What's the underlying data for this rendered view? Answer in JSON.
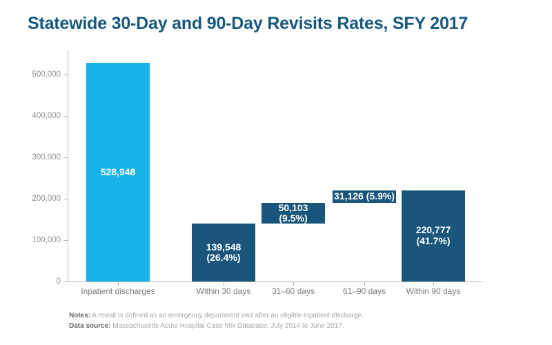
{
  "title": "Statewide 30-Day and 90-Day Revisits Rates, SFY 2017",
  "notes": {
    "notes_label": "Notes:",
    "notes_text": " A revisit is defined as an emergency department visit after an eligible inpatient discharge.",
    "source_label": "Data source:",
    "source_text": " Massachusetts Acute Hospital Case Mix Database, July 2014 to June 2017."
  },
  "colors": {
    "title": "#14587F",
    "bar_light": "#18B3E6",
    "bar_dark": "#1A567C",
    "axis": "#B5B5B5",
    "value_label": "#FFFFFF"
  },
  "chart_data": {
    "type": "bar",
    "subtype": "waterfall",
    "title": "Statewide 30-Day and 90-Day Revisits Rates, SFY 2017",
    "categories": [
      "Inpatient discharges",
      "Within 30 days",
      "31–60 days",
      "61–90 days",
      "Within 90 days"
    ],
    "values": [
      528948,
      139548,
      50103,
      31126,
      220777
    ],
    "base_values": [
      0,
      0,
      139548,
      189651,
      0
    ],
    "percent_of_discharges": [
      null,
      26.4,
      9.5,
      5.9,
      41.7
    ],
    "bar_labels": [
      [
        "528,948"
      ],
      [
        "139,548",
        "(26.4%)"
      ],
      [
        "50,103",
        "(9.5%)"
      ],
      [
        "31,126 (5.9%)"
      ],
      [
        "220,777",
        "(41.7%)"
      ]
    ],
    "bar_color_keys": [
      "bar_light",
      "bar_dark",
      "bar_dark",
      "bar_dark",
      "bar_dark"
    ],
    "xlabel": "",
    "ylabel": "",
    "ylim": [
      0,
      550000
    ],
    "y_ticks": [
      "0",
      "100,000",
      "200,000",
      "300,000",
      "400,000",
      "500,000"
    ],
    "y_tick_values": [
      0,
      100000,
      200000,
      300000,
      400000,
      500000
    ],
    "grid": false,
    "legend": null
  }
}
